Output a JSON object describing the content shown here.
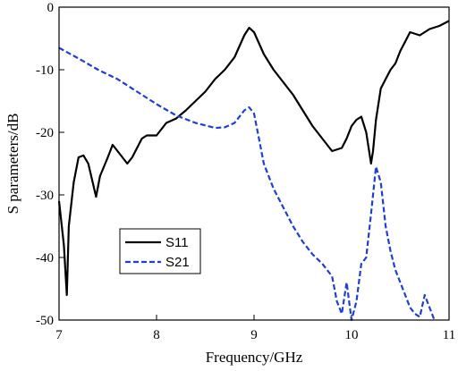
{
  "chart_data": {
    "type": "line",
    "title": "",
    "xlabel": "Frequency/GHz",
    "ylabel": "S parameters/dB",
    "xlim": [
      7,
      11
    ],
    "ylim": [
      -50,
      0
    ],
    "xticks": [
      7,
      8,
      9,
      10,
      11
    ],
    "yticks": [
      0,
      -10,
      -20,
      -30,
      -40,
      -50
    ],
    "grid": false,
    "legend_position": "middle-left",
    "series": [
      {
        "name": "S11",
        "color": "#000000",
        "line_style": "solid",
        "x": [
          7.0,
          7.05,
          7.08,
          7.1,
          7.15,
          7.2,
          7.25,
          7.3,
          7.38,
          7.42,
          7.5,
          7.55,
          7.6,
          7.7,
          7.75,
          7.8,
          7.85,
          7.9,
          8.0,
          8.1,
          8.2,
          8.3,
          8.4,
          8.5,
          8.6,
          8.7,
          8.8,
          8.9,
          8.95,
          9.0,
          9.1,
          9.2,
          9.3,
          9.4,
          9.5,
          9.6,
          9.7,
          9.8,
          9.9,
          9.95,
          10.0,
          10.05,
          10.1,
          10.15,
          10.2,
          10.22,
          10.25,
          10.3,
          10.35,
          10.4,
          10.45,
          10.5,
          10.55,
          10.6,
          10.7,
          10.8,
          10.9,
          11.0
        ],
        "y": [
          -31,
          -38,
          -46,
          -35,
          -28,
          -24,
          -23.7,
          -25,
          -30.3,
          -27,
          -24,
          -22,
          -23,
          -25,
          -24,
          -22.5,
          -21,
          -20.5,
          -20.5,
          -18.5,
          -17.8,
          -16.5,
          -15,
          -13.5,
          -11.5,
          -10,
          -8,
          -4.5,
          -3.3,
          -4,
          -7.5,
          -10,
          -12,
          -14,
          -16.5,
          -19,
          -21,
          -23,
          -22.5,
          -21,
          -19,
          -18,
          -17.5,
          -20,
          -25,
          -23,
          -18,
          -13,
          -11.5,
          -10,
          -9,
          -7,
          -5.5,
          -4,
          -4.5,
          -3.5,
          -3,
          -2.2
        ]
      },
      {
        "name": "S21",
        "color": "#1f3fd6",
        "line_style": "dashed",
        "x": [
          7.0,
          7.2,
          7.4,
          7.6,
          7.8,
          8.0,
          8.2,
          8.4,
          8.6,
          8.7,
          8.8,
          8.9,
          8.95,
          9.0,
          9.05,
          9.1,
          9.2,
          9.3,
          9.4,
          9.5,
          9.6,
          9.7,
          9.8,
          9.85,
          9.9,
          9.95,
          10.0,
          10.05,
          10.1,
          10.15,
          10.2,
          10.25,
          10.3,
          10.35,
          10.4,
          10.45,
          10.5,
          10.55,
          10.6,
          10.65,
          10.7,
          10.75,
          10.8,
          10.85
        ],
        "y": [
          -6.5,
          -8.2,
          -10,
          -11.5,
          -13.5,
          -15.5,
          -17.3,
          -18.5,
          -19.3,
          -19.2,
          -18.5,
          -16.5,
          -16,
          -17,
          -21,
          -25,
          -29,
          -32,
          -35,
          -37.5,
          -39.5,
          -41,
          -43,
          -47,
          -49,
          -44,
          -50,
          -47,
          -41,
          -40,
          -33,
          -25.5,
          -28,
          -35,
          -39,
          -42,
          -44,
          -46,
          -48,
          -49,
          -49.5,
          -46,
          -48,
          -50
        ]
      }
    ]
  }
}
